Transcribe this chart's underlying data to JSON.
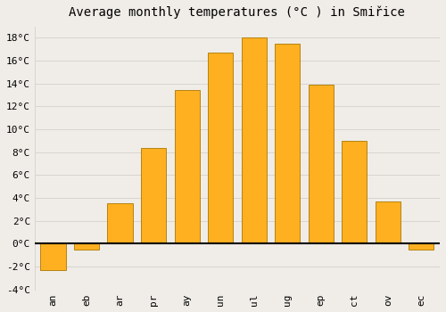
{
  "title": "Average monthly temperatures (°C ) in Smiřice",
  "months": [
    "an",
    "eb",
    "ar",
    "pr",
    "ay",
    "un",
    "ul",
    "ug",
    "ep",
    "ct",
    "ov",
    "ec"
  ],
  "values": [
    -2.3,
    -0.5,
    3.5,
    8.4,
    13.4,
    16.7,
    18.0,
    17.5,
    13.9,
    9.0,
    3.7,
    -0.5
  ],
  "bar_color_top": "#FFB020",
  "bar_color_bottom": "#FF9000",
  "bar_edge_color": "#AA7700",
  "ylim": [
    -4,
    19
  ],
  "yticks": [
    -4,
    -2,
    0,
    2,
    4,
    6,
    8,
    10,
    12,
    14,
    16,
    18
  ],
  "fig_bg_color": "#f0ede8",
  "axes_bg_color": "#f0ede8",
  "grid_color": "#d8d5d0",
  "title_fontsize": 10,
  "tick_fontsize": 8,
  "font_family": "monospace"
}
